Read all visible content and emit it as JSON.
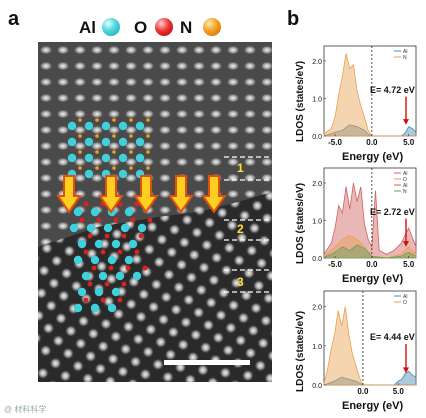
{
  "panel_a": {
    "label": "a",
    "legend": [
      {
        "element": "Al",
        "color": "#3fd0dc"
      },
      {
        "element": "O",
        "color": "#e02020"
      },
      {
        "element": "N",
        "color": "#f0a020"
      }
    ],
    "region_labels": [
      "1",
      "2",
      "3"
    ]
  },
  "panel_b": {
    "label": "b",
    "ylabel": "LDOS (states/eV)",
    "xlabel": "Energy (eV)"
  },
  "chart_data": [
    {
      "type": "area",
      "xlim": [
        -6.5,
        6.0
      ],
      "ylim": [
        0,
        2.4
      ],
      "xticks": [
        "-5.0",
        "0.0",
        "5.0"
      ],
      "yticks": [
        "0.0",
        "1.0",
        "2.0"
      ],
      "legend": [
        "Al",
        "N"
      ],
      "annotation": "E= 4.72 eV",
      "series": [
        {
          "name": "Al",
          "color": "#4a88b0",
          "x": [
            -6.5,
            -5,
            -4,
            -3,
            -2,
            -1,
            -0.5,
            0,
            2,
            4,
            4.6,
            5,
            5.5,
            6
          ],
          "y": [
            0,
            0.1,
            0.15,
            0.3,
            0.25,
            0.15,
            0.05,
            0,
            0,
            0,
            0.1,
            0.25,
            0.2,
            0.1
          ]
        },
        {
          "name": "N",
          "color": "#e8a050",
          "x": [
            -6.5,
            -5.5,
            -5,
            -4.5,
            -4,
            -3.5,
            -3,
            -2.5,
            -2,
            -1.5,
            -1,
            -0.5,
            0,
            6
          ],
          "y": [
            0.05,
            0.2,
            0.5,
            1.1,
            1.6,
            2.2,
            1.8,
            1.9,
            1.2,
            0.8,
            0.5,
            0.15,
            0,
            0
          ]
        }
      ]
    },
    {
      "type": "area",
      "xlim": [
        -6.5,
        6.0
      ],
      "ylim": [
        0,
        2.4
      ],
      "xticks": [
        "-5.0",
        "0.0",
        "5.0"
      ],
      "yticks": [
        "0.0",
        "1.0",
        "2.0"
      ],
      "legend": [
        "Al",
        "O",
        "Al",
        "N"
      ],
      "annotation": "E= 2.72 eV",
      "series": [
        {
          "name": "Al",
          "color": "#d06060",
          "x": [
            -6.5,
            -5.5,
            -5,
            -4.5,
            -4,
            -3.5,
            -3,
            -2.5,
            -2,
            -1.5,
            -1,
            -0.5,
            0,
            0.5,
            1,
            2,
            3,
            4,
            5,
            6
          ],
          "y": [
            0.1,
            0.4,
            0.8,
            1.4,
            1.2,
            1.9,
            1.3,
            2.0,
            1.5,
            1.9,
            0.9,
            0.5,
            0.3,
            1.8,
            0.2,
            0.1,
            0.2,
            0.4,
            0.8,
            0.3
          ]
        },
        {
          "name": "O",
          "color": "#e8a050",
          "x": [
            -6.5,
            -5,
            -4,
            -3,
            -2,
            -1,
            0,
            2,
            4,
            5,
            6
          ],
          "y": [
            0.05,
            0.3,
            0.5,
            0.6,
            0.5,
            0.3,
            0.05,
            0,
            0.1,
            0.3,
            0.1
          ]
        },
        {
          "name": "N",
          "color": "#6aa060",
          "x": [
            -6.5,
            -5,
            -4,
            -3,
            -2,
            -1,
            0,
            2,
            4,
            5,
            6
          ],
          "y": [
            0.02,
            0.15,
            0.3,
            0.2,
            0.35,
            0.25,
            0.05,
            0,
            0.05,
            0.15,
            0.05
          ]
        }
      ]
    },
    {
      "type": "area",
      "xlim": [
        -5.5,
        7.5
      ],
      "ylim": [
        0,
        2.4
      ],
      "xticks": [
        "0.0",
        "5.0"
      ],
      "yticks": [
        "0.0",
        "1.0",
        "2.0"
      ],
      "legend": [
        "Al",
        "O"
      ],
      "annotation": "E= 4.44 eV",
      "series": [
        {
          "name": "Al",
          "color": "#4a88b0",
          "x": [
            -5.5,
            -4,
            -3,
            -2,
            -1,
            0,
            3,
            4.4,
            5,
            5.5,
            6,
            6.5,
            7,
            7.5
          ],
          "y": [
            0,
            0.1,
            0.2,
            0.15,
            0.1,
            0,
            0,
            0,
            0.1,
            0.15,
            0.3,
            0.35,
            0.25,
            0.2
          ]
        },
        {
          "name": "O",
          "color": "#e8a050",
          "x": [
            -5.5,
            -5,
            -4.5,
            -4,
            -3.5,
            -3,
            -2.5,
            -2,
            -1.5,
            -1,
            -0.5,
            0,
            7.5
          ],
          "y": [
            0.05,
            0.4,
            0.9,
            1.3,
            1.9,
            1.5,
            2.0,
            1.3,
            0.8,
            0.5,
            0.2,
            0,
            0
          ]
        }
      ]
    }
  ]
}
